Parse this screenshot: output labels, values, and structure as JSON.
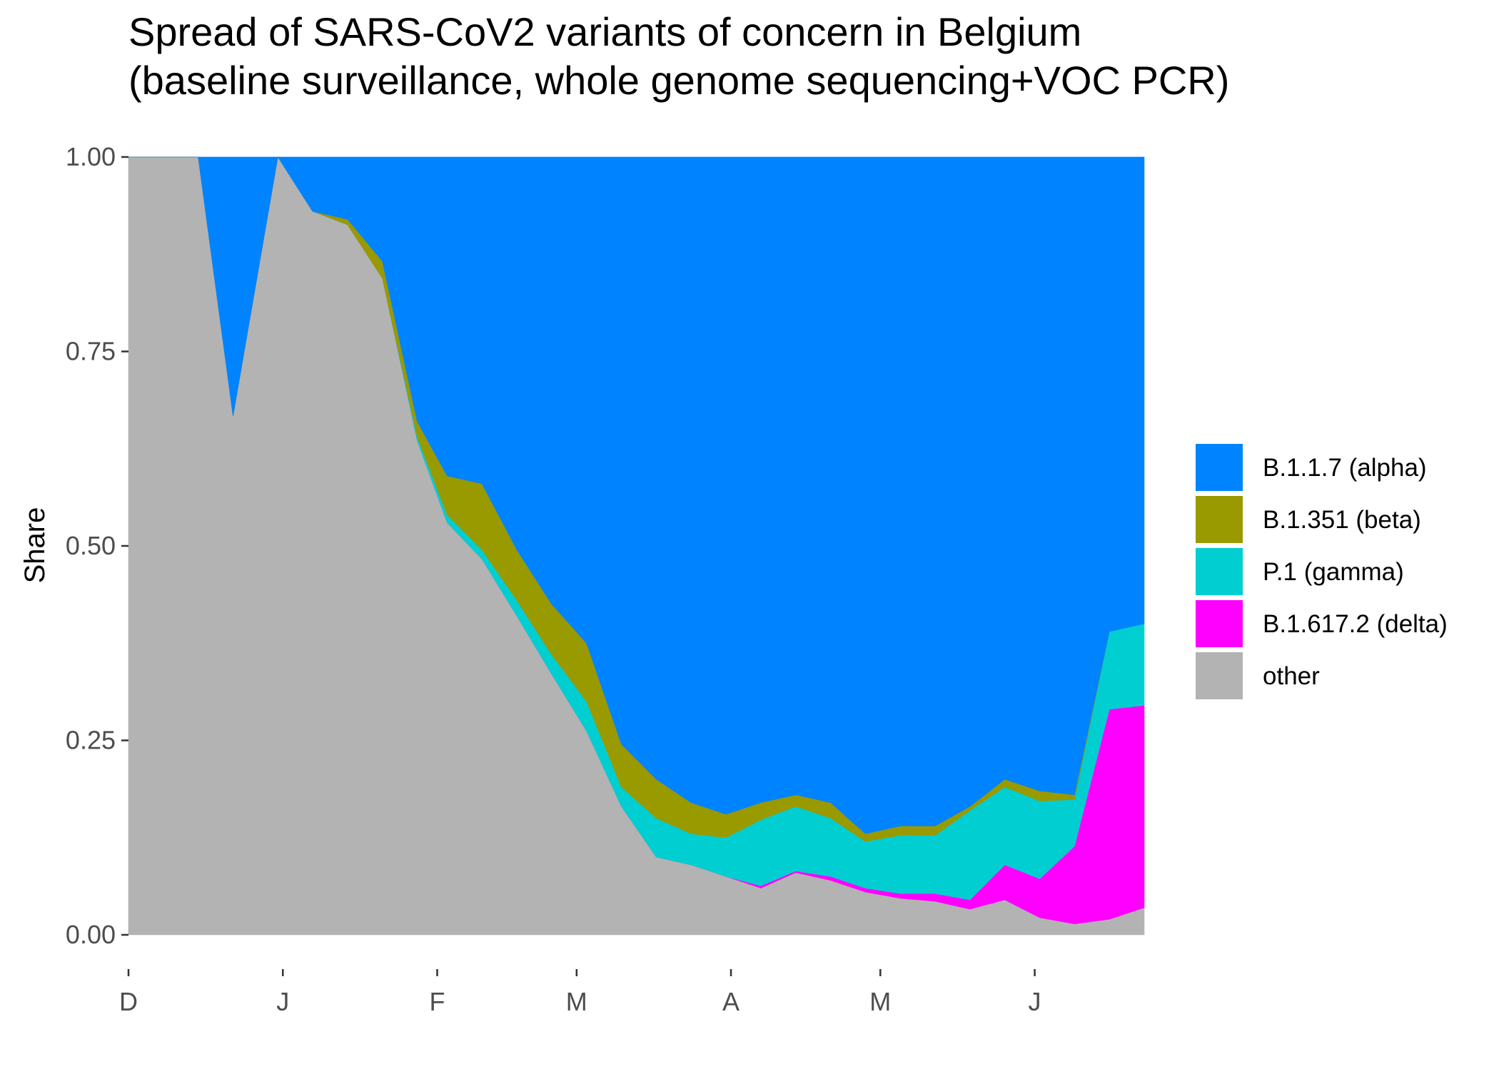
{
  "chart_data": {
    "type": "area",
    "stacked": true,
    "normalized": true,
    "title_lines": [
      "Spread of SARS-CoV2 variants of concern in Belgium",
      "(baseline surveillance, whole genome sequencing+VOC PCR)"
    ],
    "xlabel": "",
    "ylabel": "Share",
    "x_axis": {
      "type": "date",
      "range": [
        "2020-12-01",
        "2021-06-23"
      ],
      "ticks": [
        {
          "label": "D",
          "date": "2020-12-01"
        },
        {
          "label": "J",
          "date": "2021-01-01"
        },
        {
          "label": "F",
          "date": "2021-02-01"
        },
        {
          "label": "M",
          "date": "2021-03-01"
        },
        {
          "label": "A",
          "date": "2021-04-01"
        },
        {
          "label": "M",
          "date": "2021-05-01"
        },
        {
          "label": "J",
          "date": "2021-06-01"
        }
      ]
    },
    "ylim": [
      0,
      1
    ],
    "y_ticks": [
      "0.00",
      "0.25",
      "0.50",
      "0.75",
      "1.00"
    ],
    "grid": false,
    "legend_position": "right",
    "stack_order_bottom_to_top": [
      "other",
      "B.1.617.2 (delta)",
      "P.1 (gamma)",
      "B.1.351 (beta)",
      "B.1.1.7 (alpha)"
    ],
    "x": [
      "2020-12-01",
      "2020-12-08",
      "2020-12-15",
      "2020-12-22",
      "2020-12-31",
      "2021-01-07",
      "2021-01-14",
      "2021-01-21",
      "2021-01-28",
      "2021-02-03",
      "2021-02-10",
      "2021-02-17",
      "2021-02-24",
      "2021-03-03",
      "2021-03-10",
      "2021-03-17",
      "2021-03-24",
      "2021-03-31",
      "2021-04-07",
      "2021-04-14",
      "2021-04-21",
      "2021-04-28",
      "2021-05-05",
      "2021-05-12",
      "2021-05-19",
      "2021-05-26",
      "2021-06-02",
      "2021-06-09",
      "2021-06-16",
      "2021-06-23"
    ],
    "series": [
      {
        "name": "B.1.1.7 (alpha)",
        "color": "#0083FF",
        "values": [
          0,
          0,
          0,
          0.333,
          0,
          0.07,
          0.08,
          0.134,
          0.34,
          0.41,
          0.42,
          0.505,
          0.575,
          0.625,
          0.755,
          0.8,
          0.83,
          0.845,
          0.83,
          0.82,
          0.83,
          0.87,
          0.86,
          0.86,
          0.835,
          0.8,
          0.815,
          0.82,
          0.61,
          0.6
        ]
      },
      {
        "name": "B.1.351 (beta)",
        "color": "#999900",
        "values": [
          0,
          0,
          0,
          0,
          0,
          0,
          0.007,
          0.022,
          0.02,
          0.05,
          0.085,
          0.065,
          0.065,
          0.075,
          0.055,
          0.05,
          0.04,
          0.03,
          0.022,
          0.015,
          0.02,
          0.01,
          0.012,
          0.012,
          0.005,
          0.01,
          0.013,
          0.006,
          0,
          0
        ]
      },
      {
        "name": "P.1 (gamma)",
        "color": "#00CED1",
        "values": [
          0,
          0,
          0,
          0,
          0,
          0,
          0,
          0,
          0.005,
          0.01,
          0.012,
          0.02,
          0.025,
          0.038,
          0.025,
          0.05,
          0.04,
          0.05,
          0.085,
          0.083,
          0.075,
          0.06,
          0.075,
          0.075,
          0.115,
          0.1,
          0.1,
          0.06,
          0.1,
          0.105
        ]
      },
      {
        "name": "B.1.617.2 (delta)",
        "color": "#FF00FF",
        "values": [
          0,
          0,
          0,
          0,
          0,
          0,
          0,
          0,
          0,
          0,
          0,
          0,
          0,
          0,
          0,
          0,
          0,
          0,
          0.003,
          0.002,
          0.005,
          0.005,
          0.006,
          0.01,
          0.012,
          0.045,
          0.05,
          0.1,
          0.27,
          0.26
        ]
      },
      {
        "name": "other",
        "color": "#B3B3B3",
        "values": [
          1,
          1,
          1,
          0.667,
          1,
          0.93,
          0.913,
          0.844,
          0.635,
          0.53,
          0.483,
          0.41,
          0.335,
          0.262,
          0.165,
          0.1,
          0.09,
          0.075,
          0.06,
          0.08,
          0.07,
          0.055,
          0.047,
          0.043,
          0.033,
          0.045,
          0.022,
          0.014,
          0.02,
          0.035
        ]
      }
    ]
  }
}
